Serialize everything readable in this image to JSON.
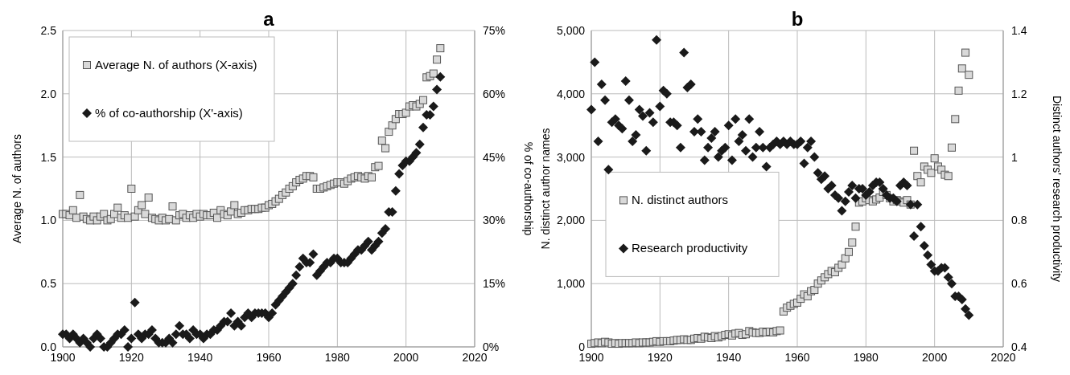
{
  "chart_data": [
    {
      "type": "scatter",
      "title": "a",
      "ylabel": "Average N. of authors",
      "y2label": "% of co-authorship",
      "grid": true,
      "legend": "top left",
      "x": [
        1900,
        1901,
        1902,
        1903,
        1904,
        1905,
        1906,
        1907,
        1908,
        1909,
        1910,
        1911,
        1912,
        1913,
        1914,
        1915,
        1916,
        1917,
        1918,
        1919,
        1920,
        1921,
        1922,
        1923,
        1924,
        1925,
        1926,
        1927,
        1928,
        1929,
        1930,
        1931,
        1932,
        1933,
        1934,
        1935,
        1936,
        1937,
        1938,
        1939,
        1940,
        1941,
        1942,
        1943,
        1944,
        1945,
        1946,
        1947,
        1948,
        1949,
        1950,
        1951,
        1952,
        1953,
        1954,
        1955,
        1956,
        1957,
        1958,
        1959,
        1960,
        1961,
        1962,
        1963,
        1964,
        1965,
        1966,
        1967,
        1968,
        1969,
        1970,
        1971,
        1972,
        1973,
        1974,
        1975,
        1976,
        1977,
        1978,
        1979,
        1980,
        1981,
        1982,
        1983,
        1984,
        1985,
        1986,
        1987,
        1988,
        1989,
        1990,
        1991,
        1992,
        1993,
        1994,
        1995,
        1996,
        1997,
        1998,
        1999,
        2000,
        2001,
        2002,
        2003,
        2004,
        2005,
        2006,
        2007,
        2008,
        2009,
        2010
      ],
      "xlim": [
        1900,
        2020
      ],
      "xticks": [
        1900,
        1920,
        1940,
        1960,
        1980,
        2000,
        2020
      ],
      "ylim": [
        0,
        2.5
      ],
      "yticks": [
        {
          "value": 0,
          "label": "0.0"
        },
        {
          "value": 0.5,
          "label": "0.5"
        },
        {
          "value": 1,
          "label": "1.0"
        },
        {
          "value": 1.5,
          "label": "1.5"
        },
        {
          "value": 2,
          "label": "2.0"
        },
        {
          "value": 2.5,
          "label": "2.5"
        }
      ],
      "y2lim": [
        0,
        75
      ],
      "y2ticks": [
        {
          "value": 0,
          "label": "0%"
        },
        {
          "value": 15,
          "label": "15%"
        },
        {
          "value": 30,
          "label": "30%"
        },
        {
          "value": 45,
          "label": "45%"
        },
        {
          "value": 60,
          "label": "60%"
        },
        {
          "value": 75,
          "label": "75%"
        }
      ],
      "series": [
        {
          "name": "Average N. of authors (X-axis)",
          "color": "#d9d9d9",
          "marker": "square",
          "values": [
            1.05,
            1.05,
            1.04,
            1.08,
            1.02,
            1.2,
            1.03,
            1.01,
            1.0,
            1.03,
            1.0,
            1.03,
            1.05,
            1.0,
            1.01,
            1.05,
            1.1,
            1.02,
            1.04,
            1.02,
            1.25,
            1.03,
            1.08,
            1.12,
            1.05,
            1.18,
            1.02,
            1.01,
            1.0,
            1.02,
            1.0,
            1.01,
            1.11,
            1.0,
            1.04,
            1.05,
            1.02,
            1.04,
            1.02,
            1.05,
            1.03,
            1.05,
            1.04,
            1.04,
            1.06,
            1.02,
            1.08,
            1.05,
            1.04,
            1.07,
            1.12,
            1.05,
            1.06,
            1.08,
            1.08,
            1.09,
            1.09,
            1.09,
            1.1,
            1.1,
            1.12,
            1.13,
            1.15,
            1.17,
            1.2,
            1.22,
            1.25,
            1.27,
            1.3,
            1.32,
            1.33,
            1.35,
            1.35,
            1.34,
            1.25,
            1.25,
            1.26,
            1.27,
            1.28,
            1.29,
            1.3,
            1.3,
            1.29,
            1.31,
            1.33,
            1.34,
            1.35,
            1.34,
            1.33,
            1.35,
            1.34,
            1.42,
            1.43,
            1.63,
            1.57,
            1.7,
            1.75,
            1.8,
            1.84,
            1.84,
            1.85,
            1.9,
            1.91,
            1.9,
            1.92,
            1.95,
            2.13,
            2.14,
            2.16,
            2.27,
            2.36
          ]
        },
        {
          "name": "% of co-authorship (X'-axis)",
          "color": "#1a1a1a",
          "marker": "diamond",
          "axis": "y2",
          "values": [
            3,
            3,
            2,
            3,
            2,
            1,
            2,
            1,
            0,
            2,
            3,
            2,
            0,
            0,
            1,
            2,
            3,
            3,
            4,
            0,
            2,
            10.5,
            3,
            2,
            3,
            3,
            4,
            2,
            1,
            1,
            1,
            2,
            1,
            3,
            5,
            3,
            3,
            2,
            4,
            3,
            3,
            2,
            3,
            3,
            4,
            4,
            5,
            6,
            6,
            8,
            5,
            6,
            5,
            7,
            8,
            7,
            8,
            8,
            8,
            8,
            7,
            8,
            10,
            11,
            12,
            13,
            14,
            15,
            17,
            19,
            21,
            20,
            20,
            22,
            17,
            18,
            19,
            20,
            20,
            21,
            21,
            20,
            20,
            20,
            21,
            22,
            23,
            23,
            24,
            25,
            23,
            24,
            25,
            27,
            28,
            32,
            32,
            37,
            41,
            43,
            44,
            44,
            45,
            46,
            48,
            52,
            55,
            55,
            57,
            61,
            64
          ]
        }
      ]
    },
    {
      "type": "scatter",
      "title": "b",
      "ylabel": "N. distinct author names",
      "y2label": "Distinct authors' research productivity",
      "grid": true,
      "legend": "left",
      "x": [
        1900,
        1901,
        1902,
        1903,
        1904,
        1905,
        1906,
        1907,
        1908,
        1909,
        1910,
        1911,
        1912,
        1913,
        1914,
        1915,
        1916,
        1917,
        1918,
        1919,
        1920,
        1921,
        1922,
        1923,
        1924,
        1925,
        1926,
        1927,
        1928,
        1929,
        1930,
        1931,
        1932,
        1933,
        1934,
        1935,
        1936,
        1937,
        1938,
        1939,
        1940,
        1941,
        1942,
        1943,
        1944,
        1945,
        1946,
        1947,
        1948,
        1949,
        1950,
        1951,
        1952,
        1953,
        1954,
        1955,
        1956,
        1957,
        1958,
        1959,
        1960,
        1961,
        1962,
        1963,
        1964,
        1965,
        1966,
        1967,
        1968,
        1969,
        1970,
        1971,
        1972,
        1973,
        1974,
        1975,
        1976,
        1977,
        1978,
        1979,
        1980,
        1981,
        1982,
        1983,
        1984,
        1985,
        1986,
        1987,
        1988,
        1989,
        1990,
        1991,
        1992,
        1993,
        1994,
        1995,
        1996,
        1997,
        1998,
        1999,
        2000,
        2001,
        2002,
        2003,
        2004,
        2005,
        2006,
        2007,
        2008,
        2009,
        2010
      ],
      "xlim": [
        1900,
        2020
      ],
      "xticks": [
        1900,
        1920,
        1940,
        1960,
        1980,
        2000,
        2020
      ],
      "ylim": [
        0,
        5000
      ],
      "yticks": [
        0,
        {
          "value": 1000,
          "label": "1,000"
        },
        {
          "value": 2000,
          "label": "2,000"
        },
        {
          "value": 3000,
          "label": "3,000"
        },
        {
          "value": 4000,
          "label": "4,000"
        },
        {
          "value": 5000,
          "label": "5,000"
        }
      ],
      "y2lim": [
        0.4,
        1.4
      ],
      "y2ticks": [
        0.4,
        0.6,
        0.8,
        1,
        1.2,
        1.4
      ],
      "series": [
        {
          "name": "N. distinct authors",
          "color": "#d9d9d9",
          "marker": "square",
          "values": [
            50,
            60,
            70,
            60,
            80,
            70,
            50,
            60,
            50,
            60,
            60,
            60,
            60,
            70,
            60,
            70,
            70,
            70,
            80,
            90,
            80,
            90,
            90,
            90,
            100,
            110,
            110,
            120,
            110,
            110,
            130,
            140,
            130,
            160,
            150,
            140,
            170,
            150,
            170,
            190,
            200,
            180,
            210,
            220,
            190,
            200,
            250,
            230,
            220,
            220,
            240,
            230,
            240,
            230,
            250,
            260,
            560,
            620,
            650,
            680,
            700,
            760,
            830,
            800,
            880,
            900,
            1000,
            1050,
            1100,
            1150,
            1200,
            1180,
            1250,
            1300,
            1400,
            1500,
            1650,
            1900,
            2280,
            2300,
            2350,
            2320,
            2300,
            2330,
            2360,
            2450,
            2400,
            2350,
            2300,
            2320,
            2300,
            2280,
            2320,
            2250,
            3100,
            2700,
            2600,
            2850,
            2800,
            2750,
            2980,
            2850,
            2800,
            2720,
            2700,
            3150,
            3600,
            4050,
            4400,
            4650,
            4300
          ]
        },
        {
          "name": "Research productivity",
          "color": "#1a1a1a",
          "marker": "diamond",
          "axis": "y2",
          "values": [
            1.15,
            1.3,
            1.05,
            1.23,
            1.18,
            0.96,
            1.11,
            1.12,
            1.1,
            1.09,
            1.24,
            1.18,
            1.05,
            1.07,
            1.15,
            1.13,
            1.02,
            1.14,
            1.11,
            1.37,
            1.16,
            1.21,
            1.2,
            1.11,
            1.11,
            1.1,
            1.03,
            1.33,
            1.22,
            1.23,
            1.08,
            1.12,
            1.08,
            0.99,
            1.03,
            1.06,
            1.08,
            1.0,
            1.02,
            1.03,
            1.1,
            0.99,
            1.12,
            1.05,
            1.07,
            1.02,
            1.12,
            1.0,
            1.03,
            1.08,
            1.03,
            0.97,
            1.03,
            1.04,
            1.05,
            1.04,
            1.05,
            1.04,
            1.05,
            1.04,
            1.04,
            1.05,
            0.98,
            1.03,
            1.05,
            1.0,
            0.95,
            0.93,
            0.94,
            0.9,
            0.91,
            0.88,
            0.87,
            0.83,
            0.86,
            0.89,
            0.91,
            0.87,
            0.9,
            0.9,
            0.88,
            0.89,
            0.91,
            0.92,
            0.92,
            0.9,
            0.88,
            0.87,
            0.87,
            0.86,
            0.91,
            0.92,
            0.91,
            0.85,
            0.75,
            0.85,
            0.78,
            0.72,
            0.69,
            0.66,
            0.64,
            0.64,
            0.65,
            0.65,
            0.62,
            0.6,
            0.56,
            0.56,
            0.55,
            0.52,
            0.5
          ]
        }
      ]
    }
  ]
}
